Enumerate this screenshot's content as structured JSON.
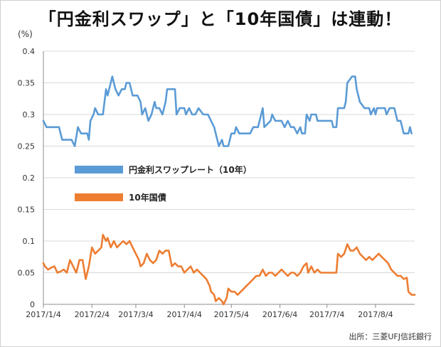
{
  "title": "「円金利スワップ」と「10年国債」は連動！",
  "source": "出所：三菱UFJ信託銀行",
  "chart_data": {
    "type": "line",
    "title": "「円金利スワップ」と「10年国債」は連動！",
    "ylabel": "(%)",
    "xlabel": "",
    "ylim": [
      0,
      0.4
    ],
    "yticks": [
      0,
      0.05,
      0.1,
      0.15,
      0.2,
      0.25,
      0.3,
      0.35,
      0.4
    ],
    "ytick_labels": [
      "0",
      "0.05",
      "0.1",
      "0.15",
      "0.2",
      "0.25",
      "0.3",
      "0.35",
      "0.4"
    ],
    "xlim": [
      0,
      237
    ],
    "xticks": [
      0,
      31,
      59,
      90,
      120,
      151,
      181,
      212
    ],
    "xtick_labels": [
      "2017/1/4",
      "2017/2/4",
      "2017/3/4",
      "2017/4/4",
      "2017/5/4",
      "2017/6/4",
      "2017/7/4",
      "2017/8/4"
    ],
    "grid": true,
    "legend_position": "center-left",
    "series": [
      {
        "name": "円金利スワップレート（10年）",
        "color": "#5B9BD5",
        "points": [
          [
            0,
            0.29
          ],
          [
            2,
            0.28
          ],
          [
            10,
            0.28
          ],
          [
            12,
            0.26
          ],
          [
            18,
            0.26
          ],
          [
            20,
            0.25
          ],
          [
            22,
            0.28
          ],
          [
            24,
            0.27
          ],
          [
            28,
            0.27
          ],
          [
            29,
            0.26
          ],
          [
            30,
            0.29
          ],
          [
            32,
            0.3
          ],
          [
            33,
            0.31
          ],
          [
            35,
            0.3
          ],
          [
            38,
            0.3
          ],
          [
            40,
            0.34
          ],
          [
            41,
            0.33
          ],
          [
            43,
            0.35
          ],
          [
            44,
            0.36
          ],
          [
            46,
            0.34
          ],
          [
            48,
            0.33
          ],
          [
            50,
            0.34
          ],
          [
            52,
            0.34
          ],
          [
            53,
            0.35
          ],
          [
            55,
            0.35
          ],
          [
            57,
            0.33
          ],
          [
            60,
            0.33
          ],
          [
            62,
            0.32
          ],
          [
            63,
            0.3
          ],
          [
            65,
            0.31
          ],
          [
            67,
            0.29
          ],
          [
            69,
            0.3
          ],
          [
            71,
            0.32
          ],
          [
            72,
            0.31
          ],
          [
            74,
            0.31
          ],
          [
            76,
            0.3
          ],
          [
            78,
            0.32
          ],
          [
            79,
            0.34
          ],
          [
            84,
            0.34
          ],
          [
            85,
            0.3
          ],
          [
            87,
            0.31
          ],
          [
            90,
            0.31
          ],
          [
            91,
            0.3
          ],
          [
            93,
            0.31
          ],
          [
            95,
            0.3
          ],
          [
            97,
            0.3
          ],
          [
            99,
            0.31
          ],
          [
            102,
            0.3
          ],
          [
            105,
            0.3
          ],
          [
            107,
            0.29
          ],
          [
            109,
            0.28
          ],
          [
            110,
            0.27
          ],
          [
            112,
            0.25
          ],
          [
            114,
            0.26
          ],
          [
            115,
            0.25
          ],
          [
            118,
            0.25
          ],
          [
            120,
            0.27
          ],
          [
            122,
            0.27
          ],
          [
            123,
            0.28
          ],
          [
            125,
            0.27
          ],
          [
            132,
            0.27
          ],
          [
            134,
            0.28
          ],
          [
            137,
            0.28
          ],
          [
            139,
            0.3
          ],
          [
            140,
            0.31
          ],
          [
            141,
            0.28
          ],
          [
            145,
            0.29
          ],
          [
            146,
            0.3
          ],
          [
            148,
            0.29
          ],
          [
            152,
            0.29
          ],
          [
            154,
            0.28
          ],
          [
            156,
            0.29
          ],
          [
            158,
            0.28
          ],
          [
            160,
            0.28
          ],
          [
            162,
            0.27
          ],
          [
            164,
            0.28
          ],
          [
            165,
            0.27
          ],
          [
            167,
            0.27
          ],
          [
            168,
            0.3
          ],
          [
            170,
            0.29
          ],
          [
            171,
            0.3
          ],
          [
            174,
            0.3
          ],
          [
            175,
            0.29
          ],
          [
            184,
            0.29
          ],
          [
            185,
            0.28
          ],
          [
            187,
            0.28
          ],
          [
            188,
            0.31
          ],
          [
            192,
            0.31
          ],
          [
            193,
            0.32
          ],
          [
            194,
            0.35
          ],
          [
            197,
            0.36
          ],
          [
            199,
            0.36
          ],
          [
            200,
            0.34
          ],
          [
            202,
            0.32
          ],
          [
            205,
            0.31
          ],
          [
            208,
            0.31
          ],
          [
            209,
            0.3
          ],
          [
            211,
            0.31
          ],
          [
            212,
            0.3
          ],
          [
            213,
            0.31
          ],
          [
            218,
            0.31
          ],
          [
            219,
            0.3
          ],
          [
            221,
            0.31
          ],
          [
            224,
            0.31
          ],
          [
            226,
            0.29
          ],
          [
            228,
            0.29
          ],
          [
            230,
            0.27
          ],
          [
            233,
            0.27
          ],
          [
            234,
            0.28
          ],
          [
            235,
            0.27
          ]
        ]
      },
      {
        "name": "10年国債",
        "color": "#ED7D31",
        "points": [
          [
            0,
            0.065
          ],
          [
            1,
            0.06
          ],
          [
            3,
            0.055
          ],
          [
            5,
            0.058
          ],
          [
            7,
            0.06
          ],
          [
            9,
            0.05
          ],
          [
            11,
            0.052
          ],
          [
            13,
            0.055
          ],
          [
            15,
            0.05
          ],
          [
            16,
            0.06
          ],
          [
            17,
            0.07
          ],
          [
            19,
            0.06
          ],
          [
            21,
            0.05
          ],
          [
            23,
            0.07
          ],
          [
            25,
            0.07
          ],
          [
            27,
            0.04
          ],
          [
            29,
            0.06
          ],
          [
            31,
            0.09
          ],
          [
            33,
            0.08
          ],
          [
            35,
            0.085
          ],
          [
            37,
            0.09
          ],
          [
            38,
            0.11
          ],
          [
            40,
            0.1
          ],
          [
            41,
            0.105
          ],
          [
            43,
            0.09
          ],
          [
            45,
            0.1
          ],
          [
            47,
            0.09
          ],
          [
            49,
            0.095
          ],
          [
            51,
            0.1
          ],
          [
            53,
            0.095
          ],
          [
            55,
            0.1
          ],
          [
            57,
            0.09
          ],
          [
            59,
            0.08
          ],
          [
            61,
            0.07
          ],
          [
            62,
            0.06
          ],
          [
            64,
            0.065
          ],
          [
            66,
            0.08
          ],
          [
            68,
            0.07
          ],
          [
            70,
            0.065
          ],
          [
            72,
            0.07
          ],
          [
            74,
            0.085
          ],
          [
            76,
            0.08
          ],
          [
            78,
            0.085
          ],
          [
            80,
            0.085
          ],
          [
            82,
            0.06
          ],
          [
            84,
            0.065
          ],
          [
            86,
            0.06
          ],
          [
            88,
            0.06
          ],
          [
            90,
            0.05
          ],
          [
            92,
            0.055
          ],
          [
            94,
            0.06
          ],
          [
            96,
            0.05
          ],
          [
            98,
            0.055
          ],
          [
            100,
            0.05
          ],
          [
            102,
            0.045
          ],
          [
            104,
            0.04
          ],
          [
            106,
            0.03
          ],
          [
            107,
            0.02
          ],
          [
            109,
            0.015
          ],
          [
            110,
            0.005
          ],
          [
            112,
            0.01
          ],
          [
            114,
            0.005
          ],
          [
            115,
            0.0
          ],
          [
            117,
            0.01
          ],
          [
            118,
            0.025
          ],
          [
            120,
            0.02
          ],
          [
            122,
            0.02
          ],
          [
            124,
            0.015
          ],
          [
            126,
            0.02
          ],
          [
            128,
            0.025
          ],
          [
            130,
            0.03
          ],
          [
            132,
            0.035
          ],
          [
            134,
            0.04
          ],
          [
            136,
            0.045
          ],
          [
            138,
            0.045
          ],
          [
            140,
            0.055
          ],
          [
            142,
            0.045
          ],
          [
            144,
            0.05
          ],
          [
            146,
            0.05
          ],
          [
            148,
            0.045
          ],
          [
            150,
            0.05
          ],
          [
            152,
            0.055
          ],
          [
            154,
            0.05
          ],
          [
            156,
            0.045
          ],
          [
            158,
            0.05
          ],
          [
            160,
            0.05
          ],
          [
            162,
            0.045
          ],
          [
            164,
            0.05
          ],
          [
            166,
            0.06
          ],
          [
            168,
            0.065
          ],
          [
            169,
            0.05
          ],
          [
            171,
            0.06
          ],
          [
            173,
            0.05
          ],
          [
            175,
            0.055
          ],
          [
            177,
            0.05
          ],
          [
            179,
            0.05
          ],
          [
            181,
            0.05
          ],
          [
            183,
            0.05
          ],
          [
            185,
            0.05
          ],
          [
            187,
            0.05
          ],
          [
            188,
            0.08
          ],
          [
            190,
            0.075
          ],
          [
            192,
            0.08
          ],
          [
            194,
            0.095
          ],
          [
            196,
            0.085
          ],
          [
            198,
            0.085
          ],
          [
            200,
            0.09
          ],
          [
            202,
            0.08
          ],
          [
            204,
            0.075
          ],
          [
            206,
            0.07
          ],
          [
            208,
            0.075
          ],
          [
            210,
            0.07
          ],
          [
            212,
            0.075
          ],
          [
            214,
            0.08
          ],
          [
            216,
            0.075
          ],
          [
            218,
            0.07
          ],
          [
            220,
            0.065
          ],
          [
            222,
            0.055
          ],
          [
            224,
            0.05
          ],
          [
            226,
            0.045
          ],
          [
            228,
            0.045
          ],
          [
            230,
            0.04
          ],
          [
            232,
            0.042
          ],
          [
            233,
            0.02
          ],
          [
            235,
            0.015
          ],
          [
            237,
            0.015
          ]
        ]
      }
    ]
  }
}
